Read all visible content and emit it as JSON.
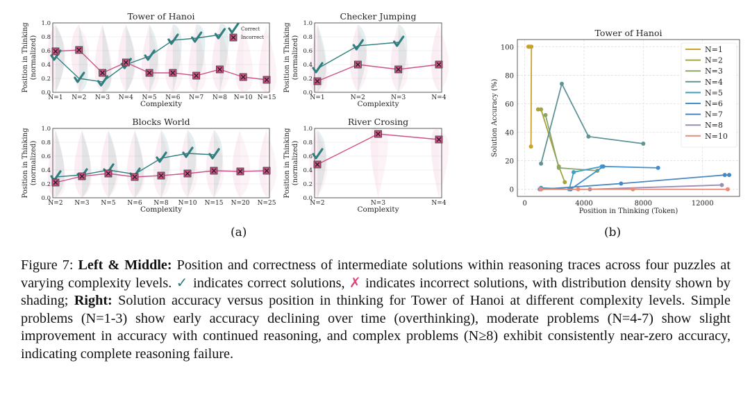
{
  "colors": {
    "correct": "#2f7f7f",
    "incorrect": "#cf4f86",
    "grid": "#e6e6e6"
  },
  "panel_a_label": "(a)",
  "panel_b_label": "(b)",
  "caption": {
    "figure_no": "Figure 7:",
    "bold1": "Left & Middle:",
    "text1": " Position and correctness of intermediate solutions within reasoning traces across four puzzles at varying complexity levels. ",
    "check_glyph": "✓",
    "text2": " indicates correct solutions, ",
    "cross_glyph": "✗",
    "text3": " indicates incorrect solutions, with distribution density shown by shading; ",
    "bold2": "Right:",
    "text4": " Solution accuracy versus position in thinking for Tower of Hanoi at different complexity levels. Simple problems (N=1-3) show early accuracy declining over time (overthinking), moderate problems (N=4-7) show slight improvement in accuracy with continued reasoning, and complex problems (N≥8) exhibit consistently near-zero accuracy, indicating complete reasoning failure."
  },
  "chart_data": [
    {
      "type": "line",
      "title": "Tower of Hanoi",
      "xlabel": "Complexity",
      "ylabel": "Position in Thinking (normalized)",
      "ylim": [
        0,
        1.0
      ],
      "yticks": [
        "0.0",
        "0.2",
        "0.4",
        "0.6",
        "0.8",
        "1.0"
      ],
      "categories": [
        "N=1",
        "N=2",
        "N=3",
        "N=4",
        "N=5",
        "N=6",
        "N=7",
        "N=8",
        "N=10",
        "N=15"
      ],
      "legend": [
        "Correct",
        "Incorrect"
      ],
      "legend_position": "top-right",
      "series": [
        {
          "name": "Correct",
          "values": [
            0.52,
            0.2,
            0.15,
            0.4,
            0.52,
            0.75,
            0.78,
            0.83,
            null,
            null
          ]
        },
        {
          "name": "Incorrect",
          "values": [
            0.59,
            0.61,
            0.28,
            0.43,
            0.28,
            0.28,
            0.24,
            0.33,
            0.22,
            0.18
          ]
        }
      ]
    },
    {
      "type": "line",
      "title": "Checker Jumping",
      "xlabel": "Complexity",
      "ylabel": "Position in Thinking (normalized)",
      "ylim": [
        0,
        1.0
      ],
      "yticks": [
        "0.0",
        "0.2",
        "0.4",
        "0.6",
        "0.8",
        "1.0"
      ],
      "categories": [
        "N=1",
        "N=2",
        "N=3",
        "N=4"
      ],
      "series": [
        {
          "name": "Correct",
          "values": [
            0.34,
            0.67,
            0.72,
            null
          ]
        },
        {
          "name": "Incorrect",
          "values": [
            0.16,
            0.4,
            0.33,
            0.4
          ]
        }
      ]
    },
    {
      "type": "line",
      "title": "Blocks World",
      "xlabel": "Complexity",
      "ylabel": "Position in Thinking (normalized)",
      "ylim": [
        0,
        1.0
      ],
      "yticks": [
        "0.0",
        "0.2",
        "0.4",
        "0.6",
        "0.8",
        "1.0"
      ],
      "categories": [
        "N=2",
        "N=3",
        "N=5",
        "N=6",
        "N=8",
        "N=10",
        "N=15",
        "N=20",
        "N=25"
      ],
      "series": [
        {
          "name": "Correct",
          "values": [
            0.3,
            0.33,
            0.4,
            0.34,
            0.57,
            0.64,
            0.62,
            null,
            null
          ]
        },
        {
          "name": "Incorrect",
          "values": [
            0.22,
            0.31,
            0.35,
            0.3,
            0.32,
            0.35,
            0.39,
            0.38,
            0.39
          ]
        }
      ]
    },
    {
      "type": "line",
      "title": "River Crosing",
      "xlabel": "Complexity",
      "ylabel": "Position in Thinking (normalized)",
      "ylim": [
        0,
        1.0
      ],
      "yticks": [
        "0.0",
        "0.2",
        "0.4",
        "0.6",
        "0.8",
        "1.0"
      ],
      "categories": [
        "N=2",
        "N=3",
        "N=4"
      ],
      "series": [
        {
          "name": "Correct",
          "values": [
            0.62,
            null,
            null
          ]
        },
        {
          "name": "Incorrect",
          "values": [
            0.48,
            0.92,
            0.84
          ]
        }
      ]
    },
    {
      "type": "line",
      "title": "Tower of Hanoi",
      "xlabel": "Position in Thinking (Token)",
      "ylabel": "Solution Accuracy (%)",
      "xlim": [
        -500,
        14500
      ],
      "ylim": [
        -5,
        105
      ],
      "xticks": [
        0,
        4000,
        8000,
        12000
      ],
      "yticks": [
        0,
        20,
        40,
        60,
        80,
        100
      ],
      "grid": true,
      "legend_position": "top-right",
      "series": [
        {
          "name": "N=1",
          "color": "#c9a227",
          "x": [
            250,
            350,
            450,
            420
          ],
          "y": [
            100,
            100,
            100,
            30
          ]
        },
        {
          "name": "N=2",
          "color": "#a8a23c",
          "x": [
            900,
            1100,
            2300,
            2700
          ],
          "y": [
            56,
            56,
            16,
            5
          ]
        },
        {
          "name": "N=3",
          "color": "#8aa56a",
          "x": [
            1400,
            2300,
            4900
          ],
          "y": [
            52,
            15,
            13
          ]
        },
        {
          "name": "N=4",
          "color": "#5f9396",
          "x": [
            1100,
            2500,
            4300,
            8000
          ],
          "y": [
            18,
            74,
            37,
            32
          ]
        },
        {
          "name": "N=5",
          "color": "#3f9ec8",
          "x": [
            1100,
            3000,
            3300,
            5200
          ],
          "y": [
            1,
            0,
            12,
            16
          ]
        },
        {
          "name": "N=6",
          "color": "#3f8fcf",
          "x": [
            3100,
            5300,
            9000
          ],
          "y": [
            0,
            16,
            15
          ]
        },
        {
          "name": "N=7",
          "color": "#4b88c0",
          "x": [
            1100,
            6500,
            13500,
            13800
          ],
          "y": [
            0,
            4,
            10,
            10
          ]
        },
        {
          "name": "N=8",
          "color": "#9a8db4",
          "x": [
            1000,
            4400,
            13300
          ],
          "y": [
            0,
            0,
            3
          ]
        },
        {
          "name": "N=10",
          "color": "#e58d78",
          "x": [
            1100,
            3600,
            7300,
            13700
          ],
          "y": [
            0,
            0,
            0,
            0
          ]
        }
      ]
    }
  ]
}
